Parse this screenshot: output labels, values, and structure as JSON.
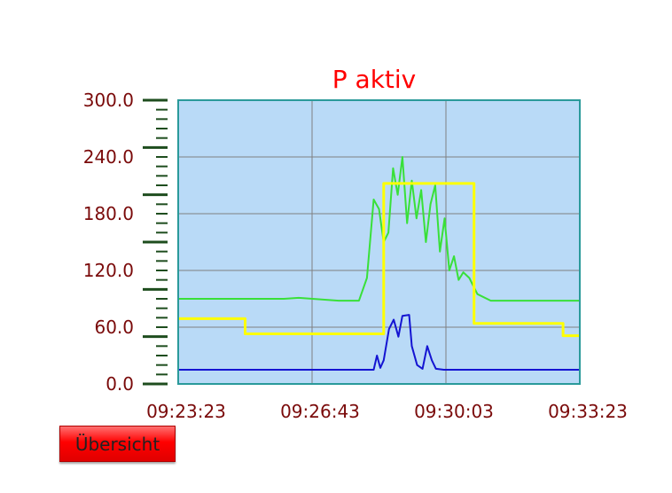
{
  "chart_data": {
    "type": "line",
    "title": "P aktiv",
    "xlabel": "",
    "ylabel": "",
    "ylim": [
      0,
      300
    ],
    "xlim": [
      "09:23:23",
      "09:33:23"
    ],
    "y_ticks": [
      "0.0",
      "60.0",
      "120.0",
      "180.0",
      "240.0",
      "300.0"
    ],
    "x_ticks": [
      "09:23:23",
      "09:26:43",
      "09:30:03",
      "09:33:23"
    ],
    "grid": true,
    "colors": {
      "plot_background": "#b9daf7",
      "plot_border": "#2a9a9a",
      "grid": "#808080",
      "axis_ticks": "#1e4d1e",
      "tick_labels": "#7a0a0a",
      "title": "#ff0000"
    },
    "series": [
      {
        "color": "#39e039",
        "points": [
          [
            "09:23:23",
            90
          ],
          [
            "09:26:01",
            90
          ],
          [
            "09:26:23",
            91
          ],
          [
            "09:27:23",
            88
          ],
          [
            "09:27:53",
            88
          ],
          [
            "09:28:05",
            112
          ],
          [
            "09:28:15",
            195
          ],
          [
            "09:28:23",
            185
          ],
          [
            "09:28:30",
            150
          ],
          [
            "09:28:37",
            160
          ],
          [
            "09:28:44",
            228
          ],
          [
            "09:28:51",
            200
          ],
          [
            "09:28:58",
            240
          ],
          [
            "09:29:05",
            170
          ],
          [
            "09:29:12",
            215
          ],
          [
            "09:29:19",
            175
          ],
          [
            "09:29:26",
            205
          ],
          [
            "09:29:33",
            150
          ],
          [
            "09:29:40",
            190
          ],
          [
            "09:29:47",
            210
          ],
          [
            "09:29:54",
            140
          ],
          [
            "09:30:01",
            175
          ],
          [
            "09:30:08",
            120
          ],
          [
            "09:30:15",
            135
          ],
          [
            "09:30:22",
            110
          ],
          [
            "09:30:29",
            118
          ],
          [
            "09:30:38",
            112
          ],
          [
            "09:30:50",
            95
          ],
          [
            "09:31:10",
            88
          ],
          [
            "09:33:23",
            88
          ]
        ]
      },
      {
        "color": "#ffff00",
        "points": [
          [
            "09:23:23",
            69
          ],
          [
            "09:25:03",
            69
          ],
          [
            "09:25:03",
            53
          ],
          [
            "09:28:30",
            53
          ],
          [
            "09:28:30",
            212
          ],
          [
            "09:30:45",
            212
          ],
          [
            "09:30:45",
            64
          ],
          [
            "09:32:58",
            64
          ],
          [
            "09:32:58",
            51
          ],
          [
            "09:33:23",
            51
          ]
        ]
      },
      {
        "color": "#1414d2",
        "points": [
          [
            "09:23:23",
            15
          ],
          [
            "09:28:15",
            15
          ],
          [
            "09:28:20",
            30
          ],
          [
            "09:28:25",
            17
          ],
          [
            "09:28:30",
            25
          ],
          [
            "09:28:38",
            58
          ],
          [
            "09:28:45",
            68
          ],
          [
            "09:28:52",
            50
          ],
          [
            "09:28:58",
            72
          ],
          [
            "09:29:08",
            73
          ],
          [
            "09:29:12",
            40
          ],
          [
            "09:29:20",
            20
          ],
          [
            "09:29:28",
            16
          ],
          [
            "09:29:35",
            40
          ],
          [
            "09:29:42",
            25
          ],
          [
            "09:29:48",
            16
          ],
          [
            "09:30:00",
            15
          ],
          [
            "09:33:23",
            15
          ]
        ]
      }
    ]
  },
  "buttons": {
    "overview_label": "Übersicht"
  }
}
